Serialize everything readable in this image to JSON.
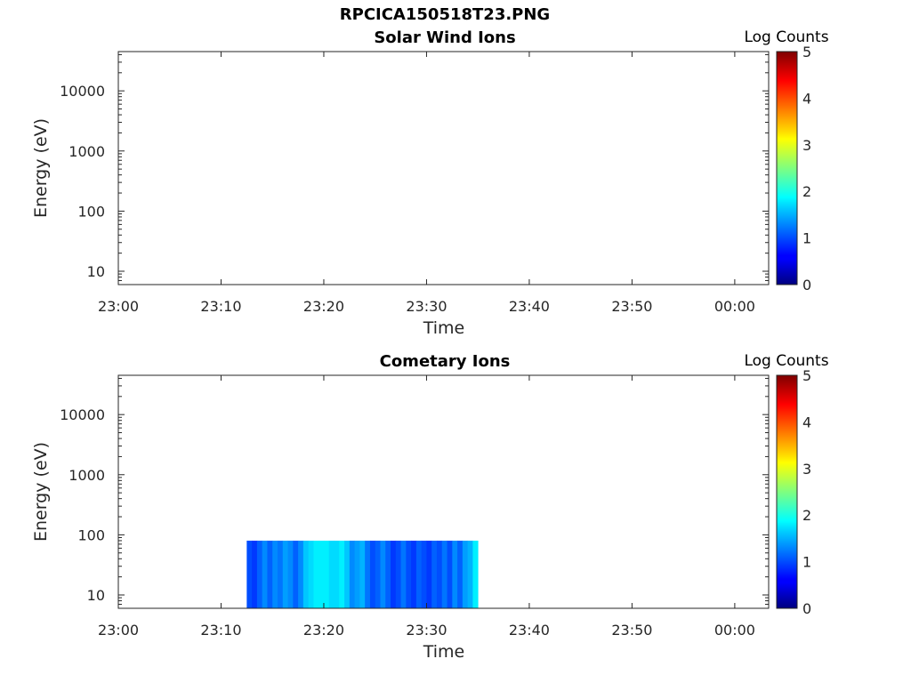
{
  "figure": {
    "title": "RPCICA150518T23.PNG"
  },
  "chart_data": [
    {
      "type": "heatmap",
      "title": "Solar Wind Ions",
      "xlabel": "Time",
      "ylabel": "Energy (eV)",
      "xticks": [
        "23:00",
        "23:10",
        "23:20",
        "23:30",
        "23:40",
        "23:50",
        "00:00"
      ],
      "xtick_minutes": [
        0,
        10,
        20,
        30,
        40,
        50,
        60
      ],
      "xlim_minutes": [
        0,
        63.3
      ],
      "yscale": "log",
      "ylim": [
        6,
        45000
      ],
      "yticks": [
        "10",
        "100",
        "1000",
        "10000"
      ],
      "ytick_values": [
        10,
        100,
        1000,
        10000
      ],
      "colorbar": {
        "label": "Log Counts",
        "range": [
          0,
          5
        ],
        "ticks": [
          "0",
          "1",
          "2",
          "3",
          "4",
          "5"
        ],
        "colormap": "jet"
      },
      "data": []
    },
    {
      "type": "heatmap",
      "title": "Cometary Ions",
      "xlabel": "Time",
      "ylabel": "Energy (eV)",
      "xticks": [
        "23:00",
        "23:10",
        "23:20",
        "23:30",
        "23:40",
        "23:50",
        "00:00"
      ],
      "xtick_minutes": [
        0,
        10,
        20,
        30,
        40,
        50,
        60
      ],
      "xlim_minutes": [
        0,
        63.3
      ],
      "yscale": "log",
      "ylim": [
        6,
        45000
      ],
      "yticks": [
        "10",
        "100",
        "1000",
        "10000"
      ],
      "ytick_values": [
        10,
        100,
        1000,
        10000
      ],
      "colorbar": {
        "label": "Log Counts",
        "range": [
          0,
          5
        ],
        "ticks": [
          "0",
          "1",
          "2",
          "3",
          "4",
          "5"
        ],
        "colormap": "jet"
      },
      "data": {
        "time_range_minutes": [
          12.5,
          35.0
        ],
        "energy_range_eV": [
          6,
          80
        ],
        "columns_log_counts": [
          [
            12.5,
            1.0
          ],
          [
            13.0,
            0.9
          ],
          [
            13.5,
            1.1
          ],
          [
            14.0,
            1.3
          ],
          [
            14.5,
            1.1
          ],
          [
            15.0,
            1.3
          ],
          [
            15.5,
            1.2
          ],
          [
            16.0,
            1.4
          ],
          [
            16.5,
            1.3
          ],
          [
            17.0,
            1.1
          ],
          [
            17.5,
            1.3
          ],
          [
            18.0,
            1.6
          ],
          [
            18.5,
            1.7
          ],
          [
            19.0,
            1.8
          ],
          [
            19.5,
            1.8
          ],
          [
            20.0,
            1.8
          ],
          [
            20.5,
            1.7
          ],
          [
            21.0,
            1.7
          ],
          [
            21.5,
            1.8
          ],
          [
            22.0,
            1.6
          ],
          [
            22.5,
            1.3
          ],
          [
            23.0,
            1.4
          ],
          [
            23.5,
            1.5
          ],
          [
            24.0,
            1.2
          ],
          [
            24.5,
            1.0
          ],
          [
            25.0,
            1.1
          ],
          [
            25.5,
            1.3
          ],
          [
            26.0,
            1.1
          ],
          [
            26.5,
            0.9
          ],
          [
            27.0,
            1.0
          ],
          [
            27.5,
            1.2
          ],
          [
            28.0,
            1.0
          ],
          [
            28.5,
            0.9
          ],
          [
            29.0,
            1.1
          ],
          [
            29.5,
            1.0
          ],
          [
            30.0,
            0.9
          ],
          [
            30.5,
            1.1
          ],
          [
            31.0,
            1.0
          ],
          [
            31.5,
            1.2
          ],
          [
            32.0,
            1.0
          ],
          [
            32.5,
            1.3
          ],
          [
            33.0,
            1.1
          ],
          [
            33.5,
            1.4
          ],
          [
            34.0,
            1.5
          ],
          [
            34.5,
            1.8
          ]
        ]
      }
    }
  ]
}
